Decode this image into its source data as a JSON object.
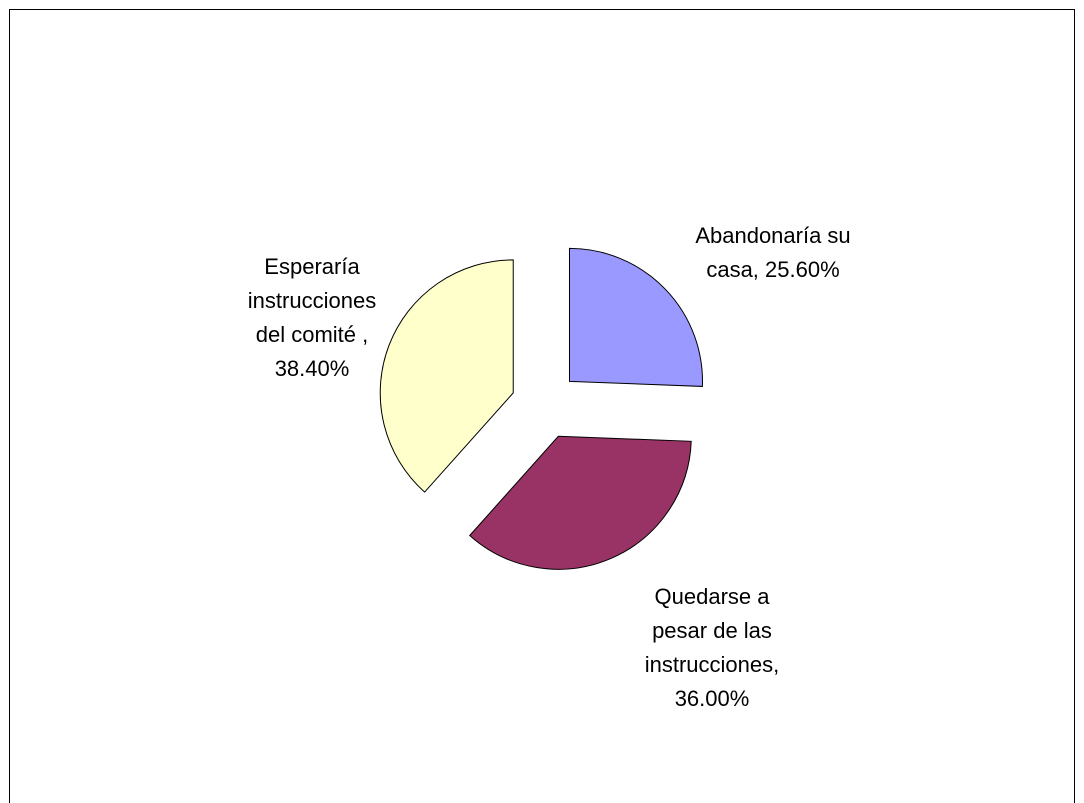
{
  "chart_data": {
    "type": "pie",
    "categories": [
      "Abandonaría su casa,",
      "Quedarse a pesar de las instrucciones,",
      "Esperaría instrucciones del comité ,"
    ],
    "values": [
      25.6,
      36.0,
      38.4
    ],
    "value_labels": [
      "25.60%",
      "36.00%",
      "38.40%"
    ],
    "colors": [
      "#9999ff",
      "#993366",
      "#ffffcc"
    ]
  }
}
